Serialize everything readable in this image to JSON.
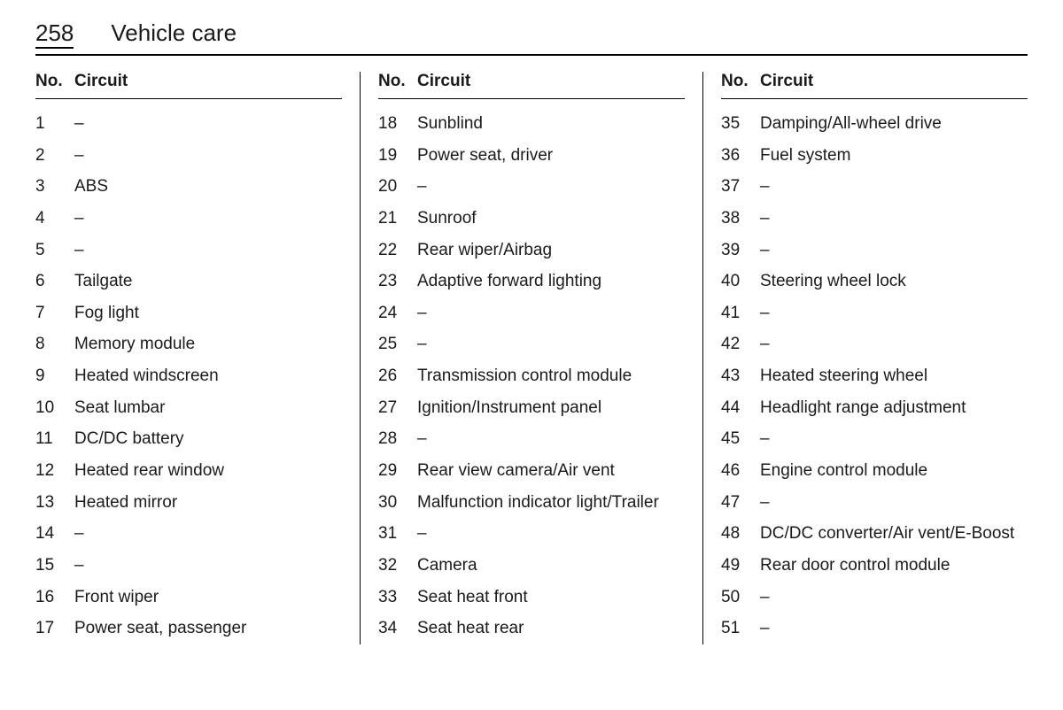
{
  "page_number": "258",
  "page_title": "Vehicle care",
  "headers": {
    "no": "No.",
    "circuit": "Circuit"
  },
  "columns": [
    {
      "rows": [
        {
          "no": "1",
          "circuit": "–"
        },
        {
          "no": "2",
          "circuit": "–"
        },
        {
          "no": "3",
          "circuit": "ABS"
        },
        {
          "no": "4",
          "circuit": "–"
        },
        {
          "no": "5",
          "circuit": "–"
        },
        {
          "no": "6",
          "circuit": "Tailgate"
        },
        {
          "no": "7",
          "circuit": "Fog light"
        },
        {
          "no": "8",
          "circuit": "Memory module"
        },
        {
          "no": "9",
          "circuit": "Heated windscreen"
        },
        {
          "no": "10",
          "circuit": "Seat lumbar"
        },
        {
          "no": "11",
          "circuit": "DC/DC battery"
        },
        {
          "no": "12",
          "circuit": "Heated rear window"
        },
        {
          "no": "13",
          "circuit": "Heated mirror"
        },
        {
          "no": "14",
          "circuit": "–"
        },
        {
          "no": "15",
          "circuit": "–"
        },
        {
          "no": "16",
          "circuit": "Front wiper"
        },
        {
          "no": "17",
          "circuit": "Power seat, passenger"
        }
      ]
    },
    {
      "rows": [
        {
          "no": "18",
          "circuit": "Sunblind"
        },
        {
          "no": "19",
          "circuit": "Power seat, driver"
        },
        {
          "no": "20",
          "circuit": "–"
        },
        {
          "no": "21",
          "circuit": "Sunroof"
        },
        {
          "no": "22",
          "circuit": "Rear wiper/Airbag"
        },
        {
          "no": "23",
          "circuit": "Adaptive forward lighting"
        },
        {
          "no": "24",
          "circuit": "–"
        },
        {
          "no": "25",
          "circuit": "–"
        },
        {
          "no": "26",
          "circuit": "Transmission control module"
        },
        {
          "no": "27",
          "circuit": "Ignition/Instrument panel"
        },
        {
          "no": "28",
          "circuit": "–"
        },
        {
          "no": "29",
          "circuit": "Rear view camera/Air vent"
        },
        {
          "no": "30",
          "circuit": "Malfunction indicator light/Trailer"
        },
        {
          "no": "31",
          "circuit": "–"
        },
        {
          "no": "32",
          "circuit": "Camera"
        },
        {
          "no": "33",
          "circuit": "Seat heat front"
        },
        {
          "no": "34",
          "circuit": "Seat heat rear"
        }
      ]
    },
    {
      "rows": [
        {
          "no": "35",
          "circuit": "Damping/All-wheel drive"
        },
        {
          "no": "36",
          "circuit": "Fuel system"
        },
        {
          "no": "37",
          "circuit": "–"
        },
        {
          "no": "38",
          "circuit": "–"
        },
        {
          "no": "39",
          "circuit": "–"
        },
        {
          "no": "40",
          "circuit": "Steering wheel lock"
        },
        {
          "no": "41",
          "circuit": "–"
        },
        {
          "no": "42",
          "circuit": "–"
        },
        {
          "no": "43",
          "circuit": "Heated steering wheel"
        },
        {
          "no": "44",
          "circuit": "Headlight range adjustment"
        },
        {
          "no": "45",
          "circuit": "–"
        },
        {
          "no": "46",
          "circuit": "Engine control module"
        },
        {
          "no": "47",
          "circuit": "–"
        },
        {
          "no": "48",
          "circuit": "DC/DC converter/Air vent/E-Boost"
        },
        {
          "no": "49",
          "circuit": "Rear door control module"
        },
        {
          "no": "50",
          "circuit": "–"
        },
        {
          "no": "51",
          "circuit": "–"
        }
      ]
    }
  ]
}
